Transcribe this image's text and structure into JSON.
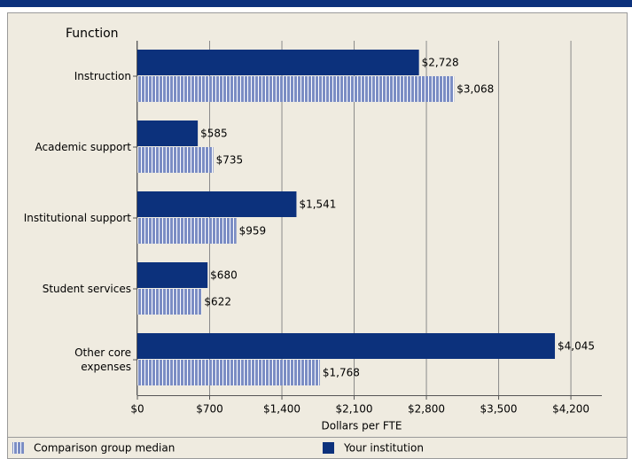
{
  "chart_data": {
    "type": "hbar",
    "y_axis_title": "Function",
    "x_axis_title": "Dollars per FTE",
    "categories": [
      "Instruction",
      "Academic support",
      "Institutional support",
      "Student services",
      "Other core\nexpenses"
    ],
    "series": [
      {
        "name": "Comparison group median",
        "color": "#7b8dc4",
        "pattern": "vertical-stripes",
        "values": [
          3068,
          735,
          959,
          622,
          1768
        ],
        "value_labels": [
          "$3,068",
          "$735",
          "$959",
          "$622",
          "$1,768"
        ]
      },
      {
        "name": "Your institution",
        "color": "#0c317c",
        "values": [
          2728,
          585,
          1541,
          680,
          4045
        ],
        "value_labels": [
          "$2,728",
          "$585",
          "$1,541",
          "$680",
          "$4,045"
        ]
      }
    ],
    "xlim": [
      0,
      4500
    ],
    "xticks": [
      {
        "value": 0,
        "label": "$0"
      },
      {
        "value": 700,
        "label": "$700"
      },
      {
        "value": 1400,
        "label": "$1,400"
      },
      {
        "value": 2100,
        "label": "$2,100"
      },
      {
        "value": 2800,
        "label": "$2,800"
      },
      {
        "value": 3500,
        "label": "$3,500"
      },
      {
        "value": 4200,
        "label": "$4,200"
      }
    ],
    "grid": true
  }
}
